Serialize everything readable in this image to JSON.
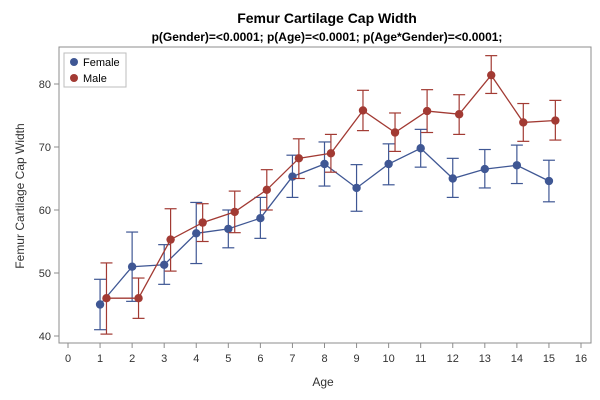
{
  "chart_data": {
    "type": "line",
    "title": "Femur Cartilage Cap Width",
    "subtitle": "p(Gender)=<0.0001; p(Age)=<0.0001; p(Age*Gender)=<0.0001;",
    "xlabel": "Age",
    "ylabel": "Femur Cartilage Cap Width",
    "xlim": [
      0,
      16
    ],
    "ylim": [
      40,
      85
    ],
    "xticks": [
      "0",
      "1",
      "2",
      "3",
      "4",
      "5",
      "6",
      "7",
      "8",
      "9",
      "10",
      "11",
      "12",
      "13",
      "14",
      "15",
      "16"
    ],
    "yticks": [
      "40",
      "50",
      "60",
      "70",
      "80"
    ],
    "grid": false,
    "legend": {
      "placement": "top-left",
      "entries": [
        "Female",
        "Male"
      ]
    },
    "series": [
      {
        "name": "Female",
        "color": "#3f5794",
        "x": [
          1,
          2,
          3,
          4,
          5,
          6,
          7,
          8,
          9,
          10,
          11,
          12,
          13,
          14,
          15
        ],
        "y": [
          45.0,
          51.0,
          51.3,
          56.3,
          57.0,
          58.7,
          65.3,
          67.3,
          63.5,
          67.3,
          69.8,
          65.0,
          66.5,
          67.1,
          64.6
        ],
        "lower": [
          41.0,
          45.5,
          48.2,
          51.5,
          54.0,
          55.5,
          62.0,
          63.8,
          59.8,
          64.0,
          66.8,
          62.0,
          63.5,
          64.2,
          61.3
        ],
        "upper": [
          49.0,
          56.5,
          54.5,
          61.2,
          60.0,
          62.0,
          68.7,
          70.8,
          67.2,
          70.5,
          72.8,
          68.2,
          69.6,
          70.3,
          67.9
        ]
      },
      {
        "name": "Male",
        "color": "#a23a33",
        "x": [
          1.2,
          2.2,
          3.2,
          4.2,
          5.2,
          6.2,
          7.2,
          8.2,
          9.2,
          10.2,
          11.2,
          12.2,
          13.2,
          14.2,
          15.2
        ],
        "y": [
          46.0,
          46.0,
          55.3,
          58.0,
          59.7,
          63.2,
          68.2,
          69.0,
          75.8,
          72.3,
          75.7,
          75.2,
          81.4,
          73.9,
          74.2
        ],
        "lower": [
          40.3,
          42.8,
          50.3,
          55.0,
          56.4,
          60.0,
          65.0,
          66.0,
          72.6,
          69.3,
          72.3,
          72.0,
          78.5,
          70.9,
          71.1
        ],
        "upper": [
          51.6,
          49.2,
          60.2,
          61.0,
          63.0,
          66.4,
          71.3,
          72.0,
          79.0,
          75.4,
          79.1,
          78.3,
          84.5,
          76.9,
          77.4
        ]
      }
    ]
  }
}
